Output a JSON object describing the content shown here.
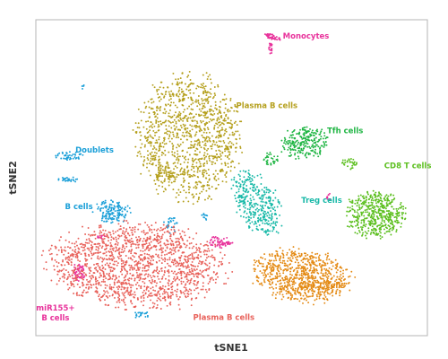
{
  "chart_data": {
    "type": "scatter",
    "title": "",
    "xlabel": "tSNE1",
    "ylabel": "tSNE2",
    "xlim": [
      0,
      100
    ],
    "ylim": [
      0,
      100
    ],
    "grid": false,
    "legend": "none",
    "clusters": [
      {
        "name": "Monocytes",
        "color": "#e8329b",
        "label_lines": [
          "Monocytes"
        ],
        "label_at": [
          69,
          94
        ]
      },
      {
        "name": "Plasma B cells (upper)",
        "color": "#b5a01e",
        "label_lines": [
          "Plasma B cells"
        ],
        "label_at": [
          59,
          72
        ]
      },
      {
        "name": "Tfh cells",
        "color": "#1fb543",
        "label_lines": [
          "Tfh cells"
        ],
        "label_at": [
          79,
          64
        ]
      },
      {
        "name": "Doublets",
        "color": "#1a9fd8",
        "label_lines": [
          "Doublets"
        ],
        "label_at": [
          15,
          58
        ]
      },
      {
        "name": "CD8 T cells",
        "color": "#5cbf1f",
        "label_lines": [
          "CD8 T cells"
        ],
        "label_at": [
          95,
          53
        ]
      },
      {
        "name": "B cells",
        "color": "#1a9fd8",
        "label_lines": [
          "B cells"
        ],
        "label_at": [
          11,
          40
        ]
      },
      {
        "name": "Treg cells",
        "color": "#19b9a8",
        "label_lines": [
          "Treg cells"
        ],
        "label_at": [
          73,
          42
        ]
      },
      {
        "name": "CD4 T cells",
        "color": "#e48a14",
        "label_lines": [
          "CD4 T cells"
        ],
        "label_at": [
          73,
          15
        ]
      },
      {
        "name": "miR155+ B cells",
        "color": "#e8329b",
        "label_lines": [
          "miR155+",
          "B cells"
        ],
        "label_at": [
          5,
          8
        ]
      },
      {
        "name": "Plasma B cells (lower)",
        "color": "#e8615a",
        "label_lines": [
          "Plasma B cells"
        ],
        "label_at": [
          48,
          5
        ]
      }
    ]
  }
}
